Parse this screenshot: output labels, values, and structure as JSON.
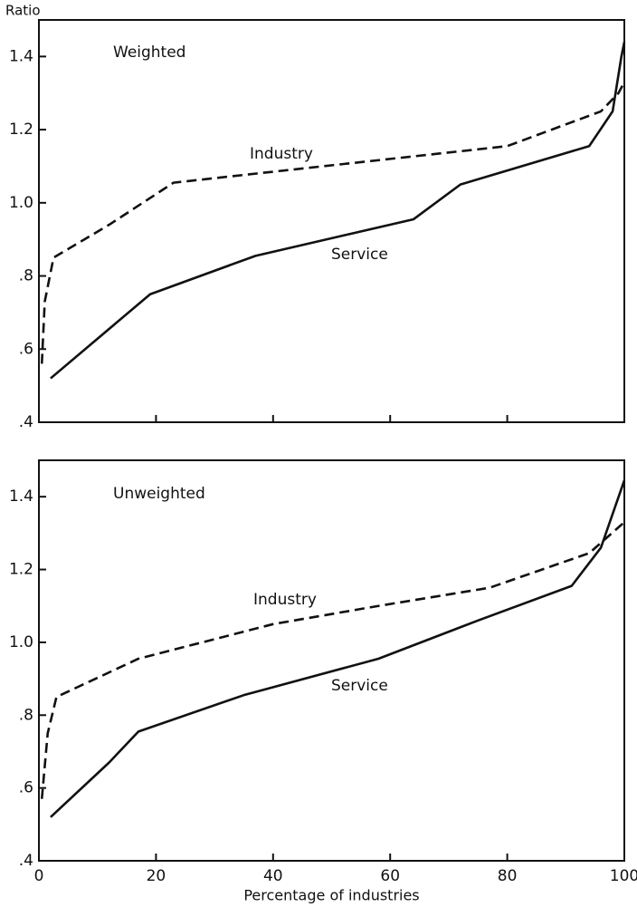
{
  "chart_data": [
    {
      "type": "line",
      "title": "Weighted",
      "ylabel": "Ratio",
      "xlim": [
        0,
        100
      ],
      "xticks": [
        0,
        20,
        40,
        60,
        80,
        100
      ],
      "xticklabels": false,
      "ylim": [
        0.4,
        1.5
      ],
      "yticks": [
        {
          "value": 0.4,
          "label": ".4"
        },
        {
          "value": 0.6,
          "label": ".6"
        },
        {
          "value": 0.8,
          "label": ".8"
        },
        {
          "value": 1.0,
          "label": "1.0"
        },
        1.2,
        1.4
      ],
      "series": [
        {
          "name": "Industry",
          "color": "#111111",
          "linestyle": "dashed",
          "x": [
            0.5,
            1,
            2.5,
            12,
            23,
            40,
            60,
            80,
            96,
            99,
            100
          ],
          "values": [
            0.56,
            0.73,
            0.85,
            0.94,
            1.055,
            1.085,
            1.12,
            1.155,
            1.25,
            1.3,
            1.33
          ]
        },
        {
          "name": "Service",
          "color": "#111111",
          "linestyle": "solid",
          "x": [
            2,
            19,
            37,
            64,
            72,
            94,
            98,
            99.5,
            100
          ],
          "values": [
            0.52,
            0.75,
            0.855,
            0.955,
            1.05,
            1.155,
            1.25,
            1.4,
            1.44
          ]
        }
      ]
    },
    {
      "type": "line",
      "title": "Unweighted",
      "xlabel": "Percentage of industries",
      "xlim": [
        0,
        100
      ],
      "xticks": [
        0,
        20,
        40,
        60,
        80,
        100
      ],
      "xticklabels": true,
      "ylim": [
        0.4,
        1.5
      ],
      "yticks": [
        {
          "value": 0.4,
          "label": ".4"
        },
        {
          "value": 0.6,
          "label": ".6"
        },
        {
          "value": 0.8,
          "label": ".8"
        },
        {
          "value": 1.0,
          "label": "1.0"
        },
        1.2,
        1.4
      ],
      "series": [
        {
          "name": "Industry",
          "color": "#111111",
          "linestyle": "dashed",
          "x": [
            0.5,
            1.5,
            3,
            17,
            40,
            58,
            77,
            94,
            100
          ],
          "values": [
            0.57,
            0.75,
            0.85,
            0.955,
            1.05,
            1.1,
            1.15,
            1.245,
            1.33
          ]
        },
        {
          "name": "Service",
          "color": "#111111",
          "linestyle": "solid",
          "x": [
            2,
            12,
            17,
            35,
            58,
            75,
            91,
            96,
            100
          ],
          "values": [
            0.52,
            0.67,
            0.755,
            0.855,
            0.955,
            1.06,
            1.155,
            1.26,
            1.445
          ]
        }
      ]
    }
  ]
}
